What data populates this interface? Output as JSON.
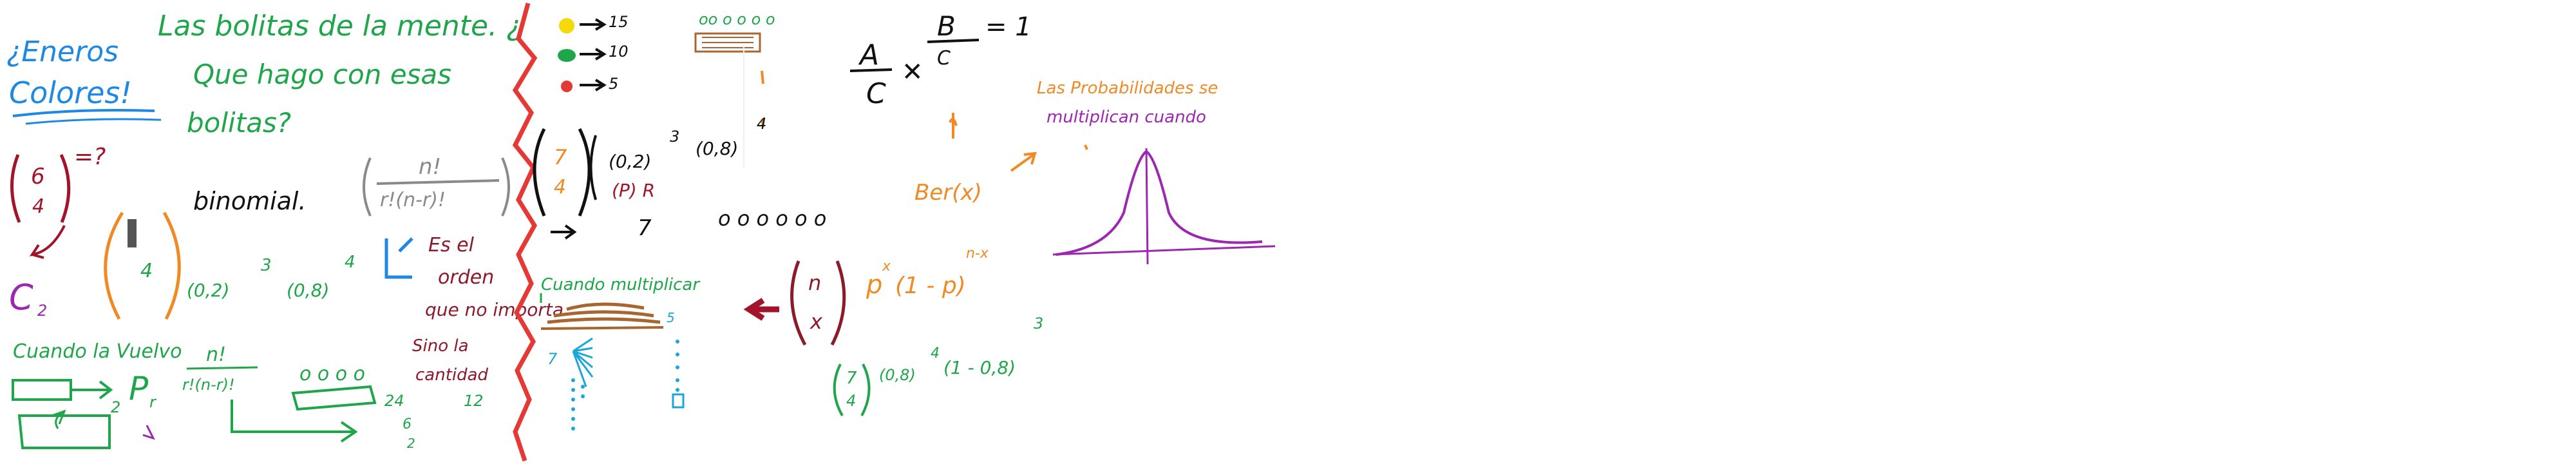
{
  "whiteboard": {
    "colors": {
      "blue": "#1e88e5",
      "green": "#1fa64a",
      "red": "#e53935",
      "darkred": "#a3142a",
      "maroon": "#8b1a2b",
      "orange": "#f08a24",
      "purple": "#9c27b0",
      "black": "#111111",
      "gray": "#8a8a8a",
      "brown": "#a8652f",
      "yellow": "#f5d90a",
      "cyan": "#1aa6d9"
    },
    "texts": {
      "eneros": "¿Eneros",
      "colores": "Colores!",
      "bolitas_title": "Las bolitas de la mente. ¿",
      "que_hago": "Que hago con esas",
      "bolitas_q": "bolitas?",
      "binomial": "binomial.",
      "six": "6",
      "four_a": "4",
      "eq_q": "=?",
      "c_sub": "2",
      "four_b": "4",
      "pow_a": "(0,2)",
      "exp_3": "3",
      "pow_b": "(0,8)",
      "exp_4": "4",
      "cuando_vuelvo": "Cuando la Vuelvo",
      "p_r": "P",
      "r_sub": "r",
      "two_a": "2",
      "perm_num": "n!",
      "perm_den": "r!(n-r)!",
      "circles_a": "o o o o",
      "n_fact": "n!",
      "comb_den": "r!(n-r)!",
      "es_el": "Es el",
      "orden": "orden",
      "que_no": "que no importa",
      "sino_la": "Sino la",
      "cantidad": "cantidad",
      "nums_a": "24",
      "nums_b": "12",
      "nums_c": "6",
      "nums_d": "2",
      "legend_15": "15",
      "legend_10": "10",
      "legend_5": "5",
      "circles_top": "oo o o o o",
      "frac_a": "A",
      "frac_c": "C",
      "frac_b": "B",
      "frac_c2": "C",
      "eq_one": "= 1",
      "big7": "7",
      "big4": "4",
      "pow_c": "(0,2)",
      "exp_c": "3",
      "pow_d": "(0,8)",
      "exp_d": "4",
      "p_r_red": "(P) R",
      "seven": "7",
      "circles_mid": "o o o o o o",
      "las_prob": "Las Probabilidades se",
      "multiplican": "multiplican cuando",
      "ber": "Ber(x)",
      "cuando_mult": "Cuando multiplicar",
      "five": "5",
      "seven_b": "7",
      "n_letter": "n",
      "x_letter": "x",
      "p_x": "p",
      "x_exp": "x",
      "one_minus_p": "(1 - p)",
      "n_minus_x": "n-x",
      "seven_c": "7",
      "four_c": "4",
      "pow_e": "(0,8)",
      "exp_e": "4",
      "one_minus": "(1 - 0,8)",
      "exp_f": "3"
    }
  }
}
